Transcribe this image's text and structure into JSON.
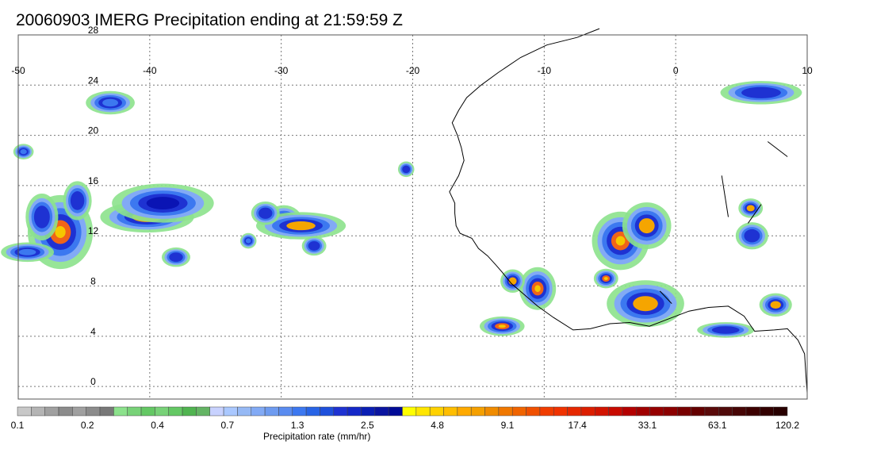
{
  "title": "20060903 IMERG Precipitation ending at 21:59:59 Z",
  "map": {
    "lon_range": [
      -50,
      10
    ],
    "lat_range": [
      -1,
      28
    ],
    "lon_ticks": [
      {
        "value": -50,
        "label": "-50"
      },
      {
        "value": -40,
        "label": "-40"
      },
      {
        "value": -30,
        "label": "-30"
      },
      {
        "value": -20,
        "label": "-20"
      },
      {
        "value": -10,
        "label": "-10"
      },
      {
        "value": 0,
        "label": "0"
      },
      {
        "value": 10,
        "label": "10"
      }
    ],
    "lat_ticks": [
      {
        "value": 0,
        "label": "0"
      },
      {
        "value": 4,
        "label": "4"
      },
      {
        "value": 8,
        "label": "8"
      },
      {
        "value": 12,
        "label": "12"
      },
      {
        "value": 16,
        "label": "16"
      },
      {
        "value": 20,
        "label": "20"
      },
      {
        "value": 24,
        "label": "24"
      },
      {
        "value": 28,
        "label": "28"
      }
    ],
    "grid": "dotted",
    "coastline_color": "#000000"
  },
  "precip_cells": [
    {
      "lon": -46.8,
      "lat": 12.3,
      "rx": 1.6,
      "ry": 1.9,
      "peak": "#f06418"
    },
    {
      "lon": -48.2,
      "lat": 13.5,
      "rx": 0.8,
      "ry": 1.2,
      "peak": "#1e32d2"
    },
    {
      "lon": -49.3,
      "lat": 10.7,
      "rx": 1.3,
      "ry": 0.5,
      "peak": "#3c78f0"
    },
    {
      "lon": -45.5,
      "lat": 14.8,
      "rx": 0.7,
      "ry": 1.0,
      "peak": "#1e32d2"
    },
    {
      "lon": -40.2,
      "lat": 13.5,
      "rx": 2.3,
      "ry": 0.8,
      "peak": "#f5a500"
    },
    {
      "lon": -39.0,
      "lat": 14.6,
      "rx": 2.5,
      "ry": 1.0,
      "peak": "#0a14b4"
    },
    {
      "lon": -38.0,
      "lat": 10.3,
      "rx": 0.7,
      "ry": 0.5,
      "peak": "#1e32d2"
    },
    {
      "lon": -29.8,
      "lat": 13.2,
      "rx": 0.9,
      "ry": 0.8,
      "peak": "#f06418"
    },
    {
      "lon": -28.5,
      "lat": 12.8,
      "rx": 2.2,
      "ry": 0.7,
      "peak": "#f5a500"
    },
    {
      "lon": -31.2,
      "lat": 13.8,
      "rx": 0.7,
      "ry": 0.6,
      "peak": "#1e32d2"
    },
    {
      "lon": -27.5,
      "lat": 11.2,
      "rx": 0.6,
      "ry": 0.5,
      "peak": "#1e32d2"
    },
    {
      "lon": -32.5,
      "lat": 11.6,
      "rx": 0.4,
      "ry": 0.4,
      "peak": "#3c78f0"
    },
    {
      "lon": -20.5,
      "lat": 17.3,
      "rx": 0.4,
      "ry": 0.4,
      "peak": "#1e32d2"
    },
    {
      "lon": -4.2,
      "lat": 11.6,
      "rx": 1.4,
      "ry": 1.5,
      "peak": "#f06418"
    },
    {
      "lon": -2.2,
      "lat": 12.8,
      "rx": 1.2,
      "ry": 1.2,
      "peak": "#f5a500"
    },
    {
      "lon": -5.3,
      "lat": 8.6,
      "rx": 0.6,
      "ry": 0.5,
      "peak": "#f06418"
    },
    {
      "lon": -2.3,
      "lat": 6.6,
      "rx": 1.9,
      "ry": 1.2,
      "peak": "#f5a500"
    },
    {
      "lon": -10.5,
      "lat": 7.8,
      "rx": 0.9,
      "ry": 1.1,
      "peak": "#f06418"
    },
    {
      "lon": -12.4,
      "lat": 8.4,
      "rx": 0.6,
      "ry": 0.6,
      "peak": "#f5a500"
    },
    {
      "lon": -13.2,
      "lat": 4.8,
      "rx": 1.1,
      "ry": 0.5,
      "peak": "#f06418"
    },
    {
      "lon": 3.8,
      "lat": 4.5,
      "rx": 1.4,
      "ry": 0.4,
      "peak": "#1e32d2"
    },
    {
      "lon": 7.6,
      "lat": 6.5,
      "rx": 0.8,
      "ry": 0.6,
      "peak": "#f5a500"
    },
    {
      "lon": 5.7,
      "lat": 14.2,
      "rx": 0.6,
      "ry": 0.5,
      "peak": "#f5a500"
    },
    {
      "lon": 5.8,
      "lat": 12.0,
      "rx": 0.8,
      "ry": 0.7,
      "peak": "#1e32d2"
    },
    {
      "lon": 6.5,
      "lat": 23.4,
      "rx": 2.0,
      "ry": 0.6,
      "peak": "#1e32d2"
    },
    {
      "lon": -43.0,
      "lat": 22.6,
      "rx": 1.2,
      "ry": 0.6,
      "peak": "#3c78f0"
    },
    {
      "lon": -49.6,
      "lat": 18.7,
      "rx": 0.5,
      "ry": 0.4,
      "peak": "#3c78f0"
    }
  ],
  "colorbar": {
    "title": "Precipitation rate (mm/hr)",
    "colors": [
      "#c8c8c8",
      "#b4b4b4",
      "#a0a0a0",
      "#8c8c8c",
      "#a0a0a0",
      "#8c8c8c",
      "#787878",
      "#8ce28c",
      "#78d278",
      "#64c864",
      "#78d278",
      "#64c864",
      "#50b450",
      "#64b464",
      "#c8d2ff",
      "#aac8ff",
      "#96b9f5",
      "#82aaf5",
      "#6e9bf0",
      "#5a8cf0",
      "#3c78f0",
      "#2864e6",
      "#1e50dc",
      "#1e32d2",
      "#1428c8",
      "#0a1eb4",
      "#0a14a0",
      "#000a96",
      "#ffff00",
      "#ffe600",
      "#ffd200",
      "#ffbe00",
      "#ffaa00",
      "#f5a000",
      "#f08c00",
      "#f07800",
      "#f06400",
      "#f05000",
      "#f03c00",
      "#f03200",
      "#e62800",
      "#dc1e00",
      "#d21400",
      "#c80a00",
      "#b40000",
      "#a00000",
      "#960000",
      "#8c0000",
      "#780000",
      "#640000",
      "#5a0a0a",
      "#500a0a",
      "#460505",
      "#3c0000",
      "#320000",
      "#280000"
    ],
    "tick_labels": [
      {
        "index": 0,
        "label": "0.1"
      },
      {
        "index": 7,
        "label": "0.2"
      },
      {
        "index": 14,
        "label": "0.4"
      },
      {
        "index": 21,
        "label": "0.7"
      },
      {
        "index": 28,
        "label": "1.3"
      },
      {
        "index": 35,
        "label": "2.5"
      },
      {
        "index": 42,
        "label": "4.8"
      },
      {
        "index": 49,
        "label": "9.1"
      },
      {
        "index": 56,
        "label": "17.4"
      },
      {
        "index": 63,
        "label": "33.1"
      },
      {
        "index": 70,
        "label": "63.1"
      },
      {
        "index": 77,
        "label": "120.2"
      }
    ]
  }
}
